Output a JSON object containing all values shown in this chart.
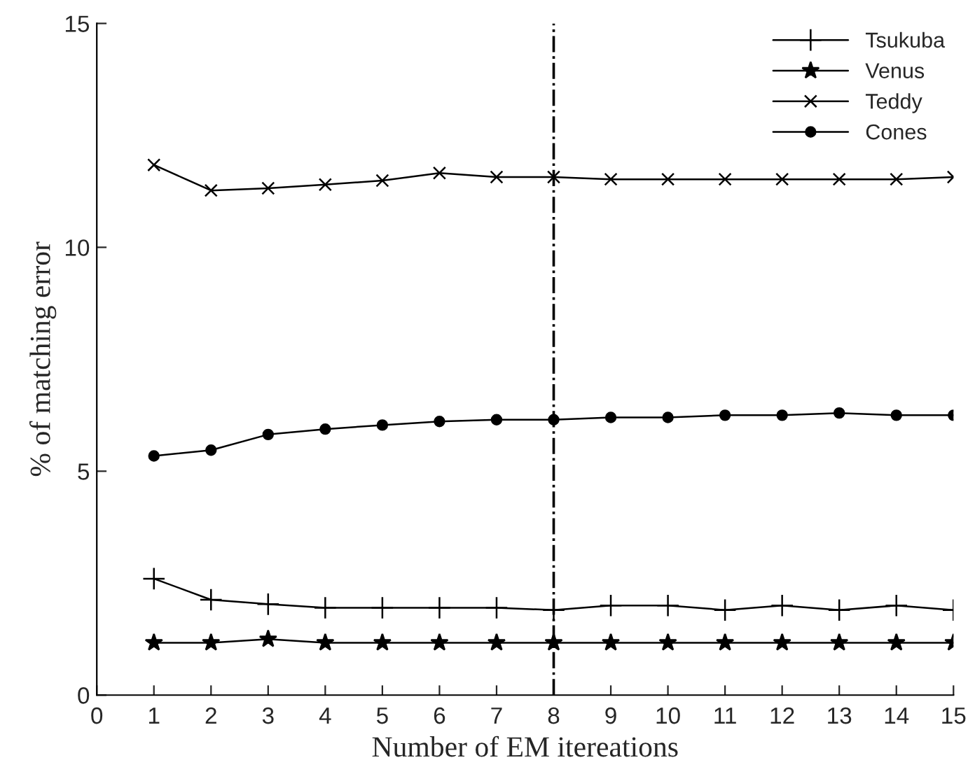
{
  "chart_data": {
    "type": "line",
    "xlabel": "Number of EM itereations",
    "ylabel": "% of matching error",
    "x": [
      1,
      2,
      3,
      4,
      5,
      6,
      7,
      8,
      9,
      10,
      11,
      12,
      13,
      14,
      15
    ],
    "series": [
      {
        "name": "Tsukuba",
        "color": "#000000",
        "marker": "plus",
        "values": [
          2.6,
          2.13,
          2.03,
          1.95,
          1.95,
          1.95,
          1.95,
          1.9,
          2.0,
          2.0,
          1.9,
          2.0,
          1.9,
          2.0,
          1.9
        ]
      },
      {
        "name": "Venus",
        "color": "#000000",
        "marker": "star",
        "values": [
          1.17,
          1.17,
          1.25,
          1.17,
          1.17,
          1.17,
          1.17,
          1.17,
          1.17,
          1.17,
          1.17,
          1.17,
          1.17,
          1.17,
          1.17
        ]
      },
      {
        "name": "Teddy",
        "color": "#000000",
        "marker": "cross",
        "values": [
          11.84,
          11.27,
          11.32,
          11.4,
          11.49,
          11.66,
          11.57,
          11.57,
          11.52,
          11.52,
          11.52,
          11.52,
          11.52,
          11.52,
          11.57
        ]
      },
      {
        "name": "Cones",
        "color": "#000000",
        "marker": "circle",
        "values": [
          5.34,
          5.47,
          5.82,
          5.94,
          6.03,
          6.11,
          6.15,
          6.15,
          6.2,
          6.2,
          6.25,
          6.25,
          6.3,
          6.25,
          6.25
        ]
      }
    ],
    "xlim": [
      0,
      15
    ],
    "xticks": [
      0,
      1,
      2,
      3,
      4,
      5,
      6,
      7,
      8,
      9,
      10,
      11,
      12,
      13,
      14,
      15
    ],
    "ylim": [
      0,
      15
    ],
    "yticks": [
      0,
      5,
      10,
      15
    ],
    "ref_lines": [
      {
        "axis": "x",
        "value": 8,
        "color": "#000000",
        "line_style": "dashdot"
      }
    ],
    "line_style": "solid",
    "grid": false,
    "legend": "top right"
  }
}
